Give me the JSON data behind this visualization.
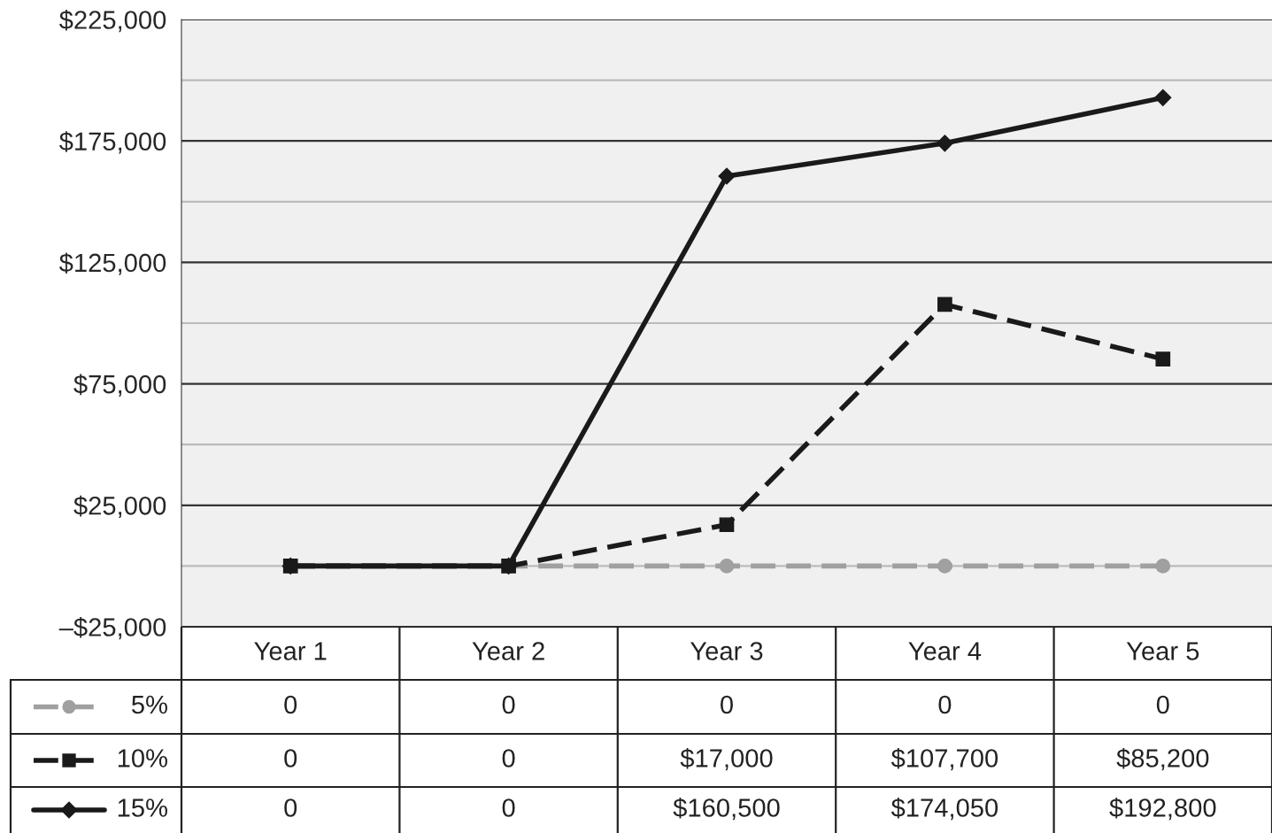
{
  "chart_data": {
    "type": "line",
    "categories": [
      "Year 1",
      "Year 2",
      "Year 3",
      "Year 4",
      "Year 5"
    ],
    "series": [
      {
        "name": "5%",
        "color": "#a0a0a0",
        "line_style": "dashed",
        "marker": "circle",
        "values": [
          0,
          0,
          0,
          0,
          0
        ],
        "value_labels": [
          "0",
          "0",
          "0",
          "0",
          "0"
        ]
      },
      {
        "name": "10%",
        "color": "#1a1a1a",
        "line_style": "dashed",
        "marker": "square",
        "values": [
          0,
          0,
          17000,
          107700,
          85200
        ],
        "value_labels": [
          "0",
          "0",
          "$17,000",
          "$107,700",
          "$85,200"
        ]
      },
      {
        "name": "15%",
        "color": "#1a1a1a",
        "line_style": "solid",
        "marker": "diamond",
        "values": [
          0,
          0,
          160500,
          174050,
          192800
        ],
        "value_labels": [
          "0",
          "0",
          "$160,500",
          "$174,050",
          "$192,800"
        ]
      }
    ],
    "ylim": [
      -25000,
      225000
    ],
    "yticks": [
      {
        "value": -25000,
        "label": "–$25,000"
      },
      {
        "value": 0,
        "label": null
      },
      {
        "value": 25000,
        "label": "$25,000"
      },
      {
        "value": 50000,
        "label": null
      },
      {
        "value": 75000,
        "label": "$75,000"
      },
      {
        "value": 100000,
        "label": null
      },
      {
        "value": 125000,
        "label": "$125,000"
      },
      {
        "value": 150000,
        "label": null
      },
      {
        "value": 175000,
        "label": "$175,000"
      },
      {
        "value": 200000,
        "label": null
      },
      {
        "value": 225000,
        "label": "$225,000"
      }
    ],
    "grid": "y",
    "legend": "bottom left"
  }
}
